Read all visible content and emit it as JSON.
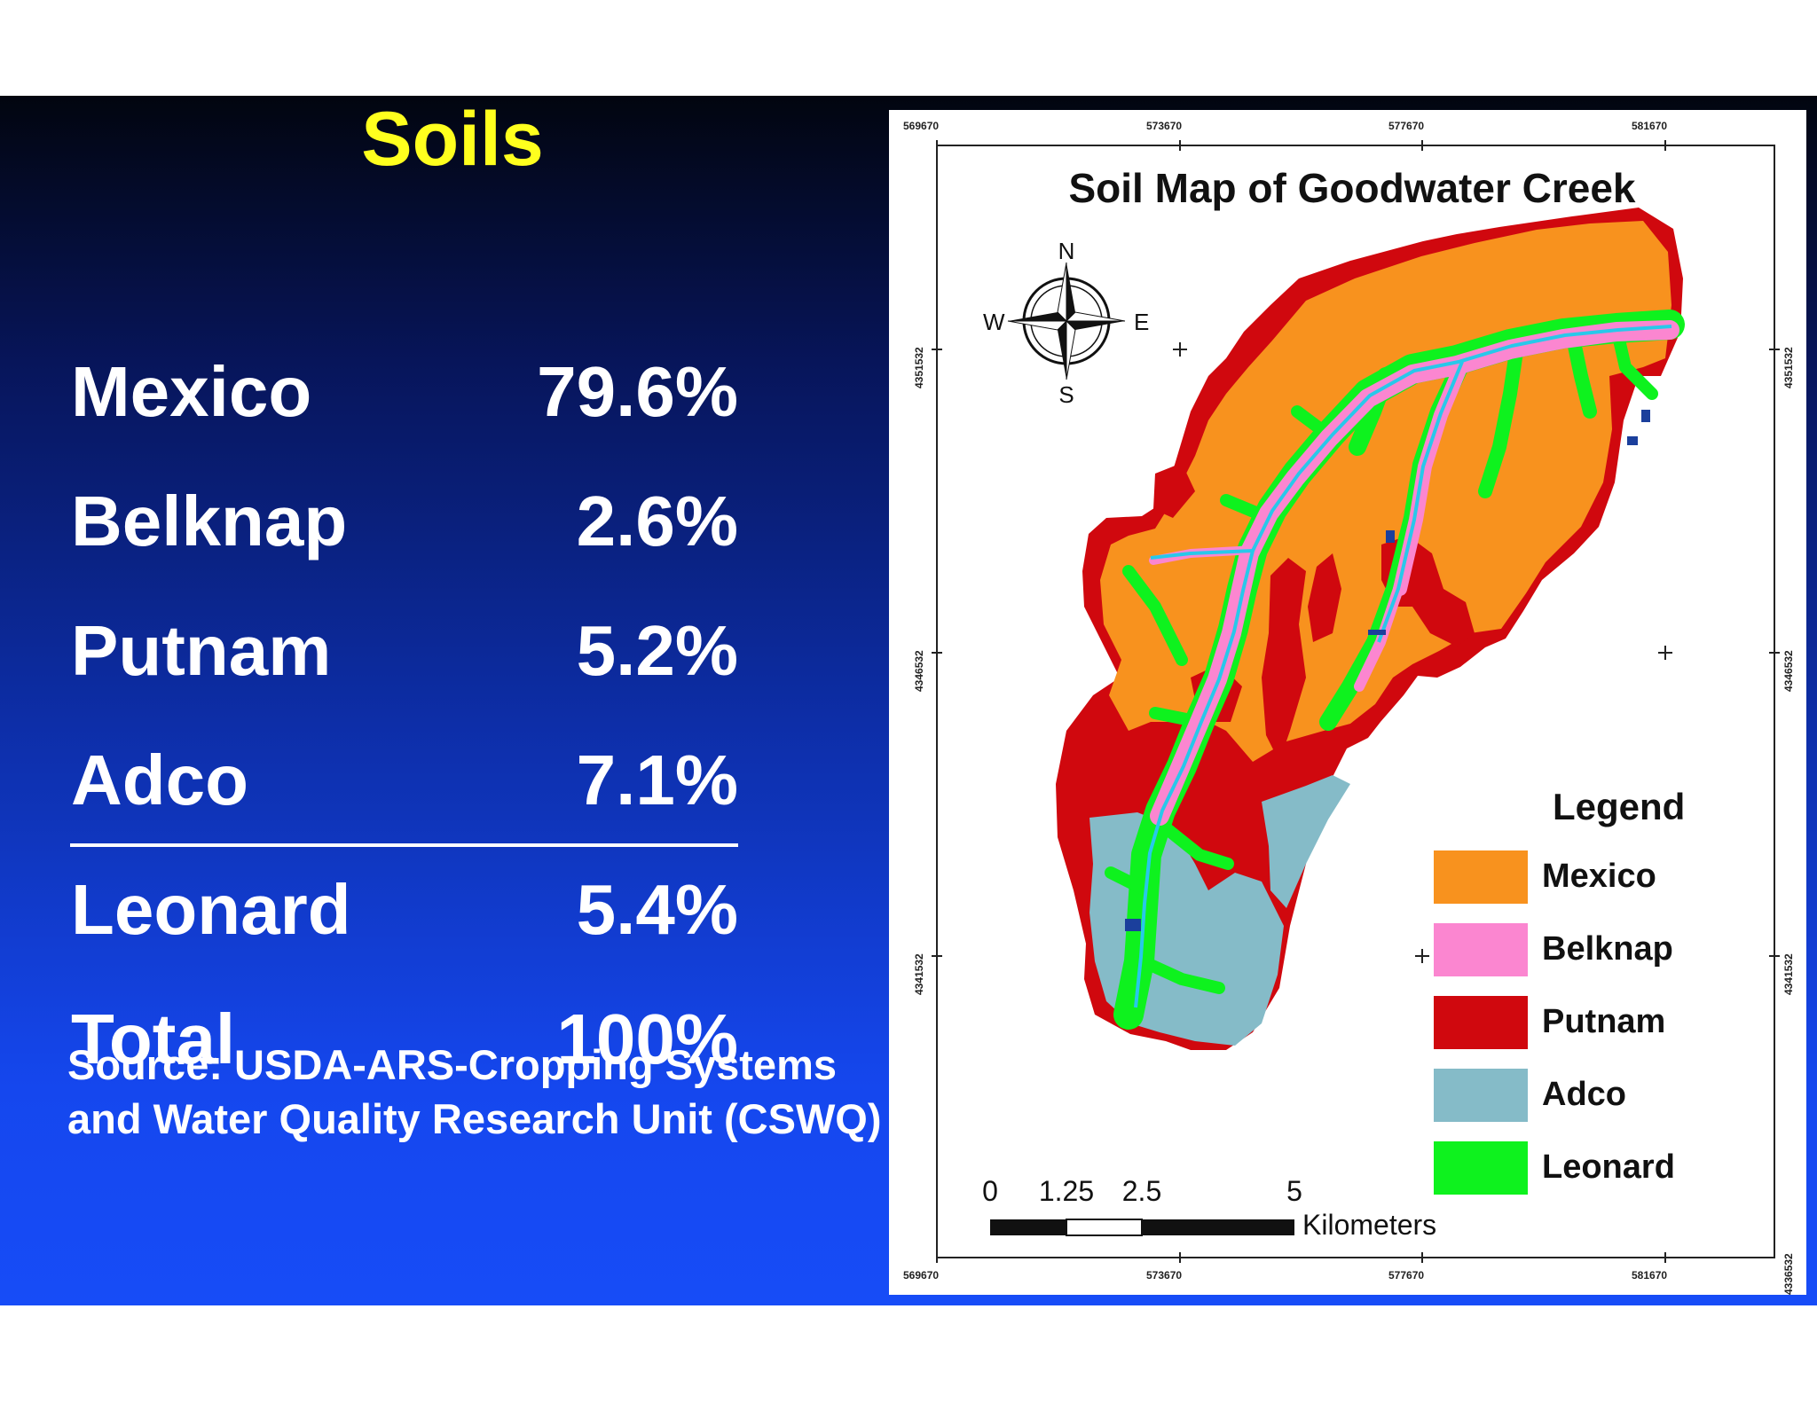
{
  "slide": {
    "title": "Soils",
    "soils": [
      {
        "name": "Mexico",
        "percent": "79.6%"
      },
      {
        "name": "Belknap",
        "percent": "2.6%"
      },
      {
        "name": "Putnam",
        "percent": "5.2%"
      },
      {
        "name": "Adco",
        "percent": "7.1%"
      },
      {
        "name": "Leonard",
        "percent": "5.4%"
      },
      {
        "name": "Total",
        "percent": "100%"
      }
    ],
    "source": "Source: USDA-ARS-Cropping Systems and Water Quality Research Unit (CSWQ)"
  },
  "map": {
    "title": "Soil Map of Goodwater Creek",
    "compass": {
      "n": "N",
      "s": "S",
      "e": "E",
      "w": "W"
    },
    "x_ticks": [
      "569670",
      "573670",
      "577670",
      "581670"
    ],
    "y_ticks": [
      "4351532",
      "4346532",
      "4341532",
      "4336532"
    ],
    "legend": {
      "title": "Legend",
      "items": [
        {
          "label": "Mexico",
          "color": "#f8921e"
        },
        {
          "label": "Belknap",
          "color": "#fb86d0"
        },
        {
          "label": "Putnam",
          "color": "#d0080e"
        },
        {
          "label": "Adco",
          "color": "#85bbc8"
        },
        {
          "label": "Leonard",
          "color": "#0ef21e"
        }
      ]
    },
    "scale_bar": {
      "ticks": [
        "0",
        "1.25",
        "2.5",
        "5"
      ],
      "unit": "Kilometers"
    }
  }
}
